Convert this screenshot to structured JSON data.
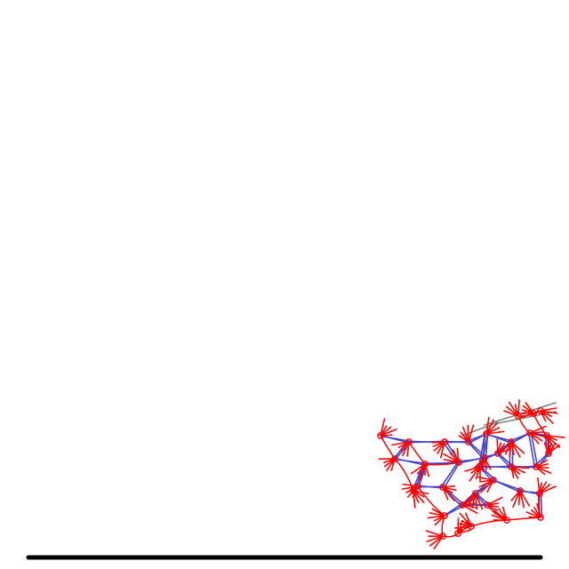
{
  "scene": {
    "background_color": "#ffffff",
    "ground_color": "#000000",
    "creature_leg_color": "#ff0000",
    "creature_body_color": "#4444cc",
    "creature_link_color": "#808080"
  }
}
